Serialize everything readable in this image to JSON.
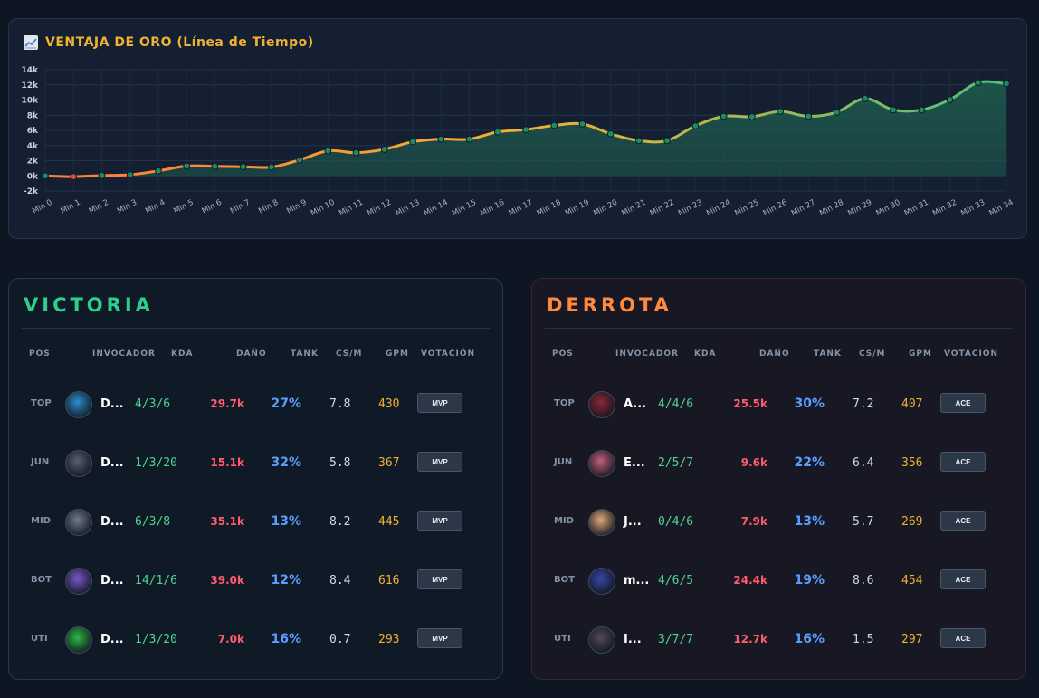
{
  "chart_data": {
    "type": "area",
    "title": "VENTAJA DE ORO (Línea de Tiempo)",
    "title_icon": "chart-increasing-icon",
    "categories": [
      "Min 0",
      "Min 1",
      "Min 2",
      "Min 3",
      "Min 4",
      "Min 5",
      "Min 6",
      "Min 7",
      "Min 8",
      "Min 9",
      "Min 10",
      "Min 11",
      "Min 12",
      "Min 13",
      "Min 14",
      "Min 15",
      "Min 16",
      "Min 17",
      "Min 18",
      "Min 19",
      "Min 20",
      "Min 21",
      "Min 22",
      "Min 23",
      "Min 24",
      "Min 25",
      "Min 26",
      "Min 27",
      "Min 28",
      "Min 29",
      "Min 30",
      "Min 31",
      "Min 32",
      "Min 33",
      "Min 34"
    ],
    "values": [
      0,
      -100,
      50,
      150,
      650,
      1300,
      1250,
      1200,
      1150,
      2100,
      3300,
      3050,
      3500,
      4500,
      4850,
      4850,
      5800,
      6100,
      6650,
      6850,
      5550,
      4650,
      4650,
      6600,
      7850,
      7800,
      8500,
      7850,
      8400,
      10200,
      8700,
      8700,
      10050,
      12300,
      12150
    ],
    "y_ticks": [
      "-2k",
      "0k",
      "2k",
      "4k",
      "6k",
      "8k",
      "10k",
      "12k",
      "14k"
    ],
    "ylim": [
      -2000,
      14000
    ],
    "grid": true,
    "line_color_start": "#ff7a3c",
    "line_color_mid": "#f0b232",
    "line_color_end": "#4fc07a",
    "area_color": "#1e5a4e",
    "point_color": "#1c8a6a",
    "negative_point_color": "#e04848"
  },
  "teams": [
    {
      "title": "VICTORIA",
      "vote_label": "MVP",
      "headers": {
        "pos": "POS",
        "invocador": "INVOCADOR",
        "kda": "KDA",
        "dano": "DAÑO",
        "tank": "TANK",
        "csm": "CS/M",
        "gpm": "GPM",
        "votacion": "VOTACIÓN"
      },
      "players": [
        {
          "pos": "TOP",
          "name": "D...",
          "kda": "4/3/6",
          "dmg": "29.7k",
          "tank": "27%",
          "csm": "7.8",
          "gpm": "430",
          "avatar_color": "#2a8fd0"
        },
        {
          "pos": "JUN",
          "name": "D...",
          "kda": "1/3/20",
          "dmg": "15.1k",
          "tank": "32%",
          "csm": "5.8",
          "gpm": "367",
          "avatar_color": "#5a5f70"
        },
        {
          "pos": "MID",
          "name": "D...",
          "kda": "6/3/8",
          "dmg": "35.1k",
          "tank": "13%",
          "csm": "8.2",
          "gpm": "445",
          "avatar_color": "#6f7a88"
        },
        {
          "pos": "BOT",
          "name": "D...",
          "kda": "14/1/6",
          "dmg": "39.0k",
          "tank": "12%",
          "csm": "8.4",
          "gpm": "616",
          "avatar_color": "#7a58c8"
        },
        {
          "pos": "UTI",
          "name": "D...",
          "kda": "1/3/20",
          "dmg": "7.0k",
          "tank": "16%",
          "csm": "0.7",
          "gpm": "293",
          "avatar_color": "#2fb84a"
        }
      ]
    },
    {
      "title": "DERROTA",
      "vote_label": "ACE",
      "headers": {
        "pos": "POS",
        "invocador": "INVOCADOR",
        "kda": "KDA",
        "dano": "DAÑO",
        "tank": "TANK",
        "csm": "CS/M",
        "gpm": "GPM",
        "votacion": "VOTACIÓN"
      },
      "players": [
        {
          "pos": "TOP",
          "name": "A...",
          "kda": "4/4/6",
          "dmg": "25.5k",
          "tank": "30%",
          "csm": "7.2",
          "gpm": "407",
          "avatar_color": "#8a2838"
        },
        {
          "pos": "JUN",
          "name": "E...",
          "kda": "2/5/7",
          "dmg": "9.6k",
          "tank": "22%",
          "csm": "6.4",
          "gpm": "356",
          "avatar_color": "#c06078"
        },
        {
          "pos": "MID",
          "name": "J...",
          "kda": "0/4/6",
          "dmg": "7.9k",
          "tank": "13%",
          "csm": "5.7",
          "gpm": "269",
          "avatar_color": "#e0a878"
        },
        {
          "pos": "BOT",
          "name": "m...",
          "kda": "4/6/5",
          "dmg": "24.4k",
          "tank": "19%",
          "csm": "8.6",
          "gpm": "454",
          "avatar_color": "#3848a8"
        },
        {
          "pos": "UTI",
          "name": "I...",
          "kda": "3/7/7",
          "dmg": "12.7k",
          "tank": "16%",
          "csm": "1.5",
          "gpm": "297",
          "avatar_color": "#504a58"
        }
      ]
    }
  ]
}
